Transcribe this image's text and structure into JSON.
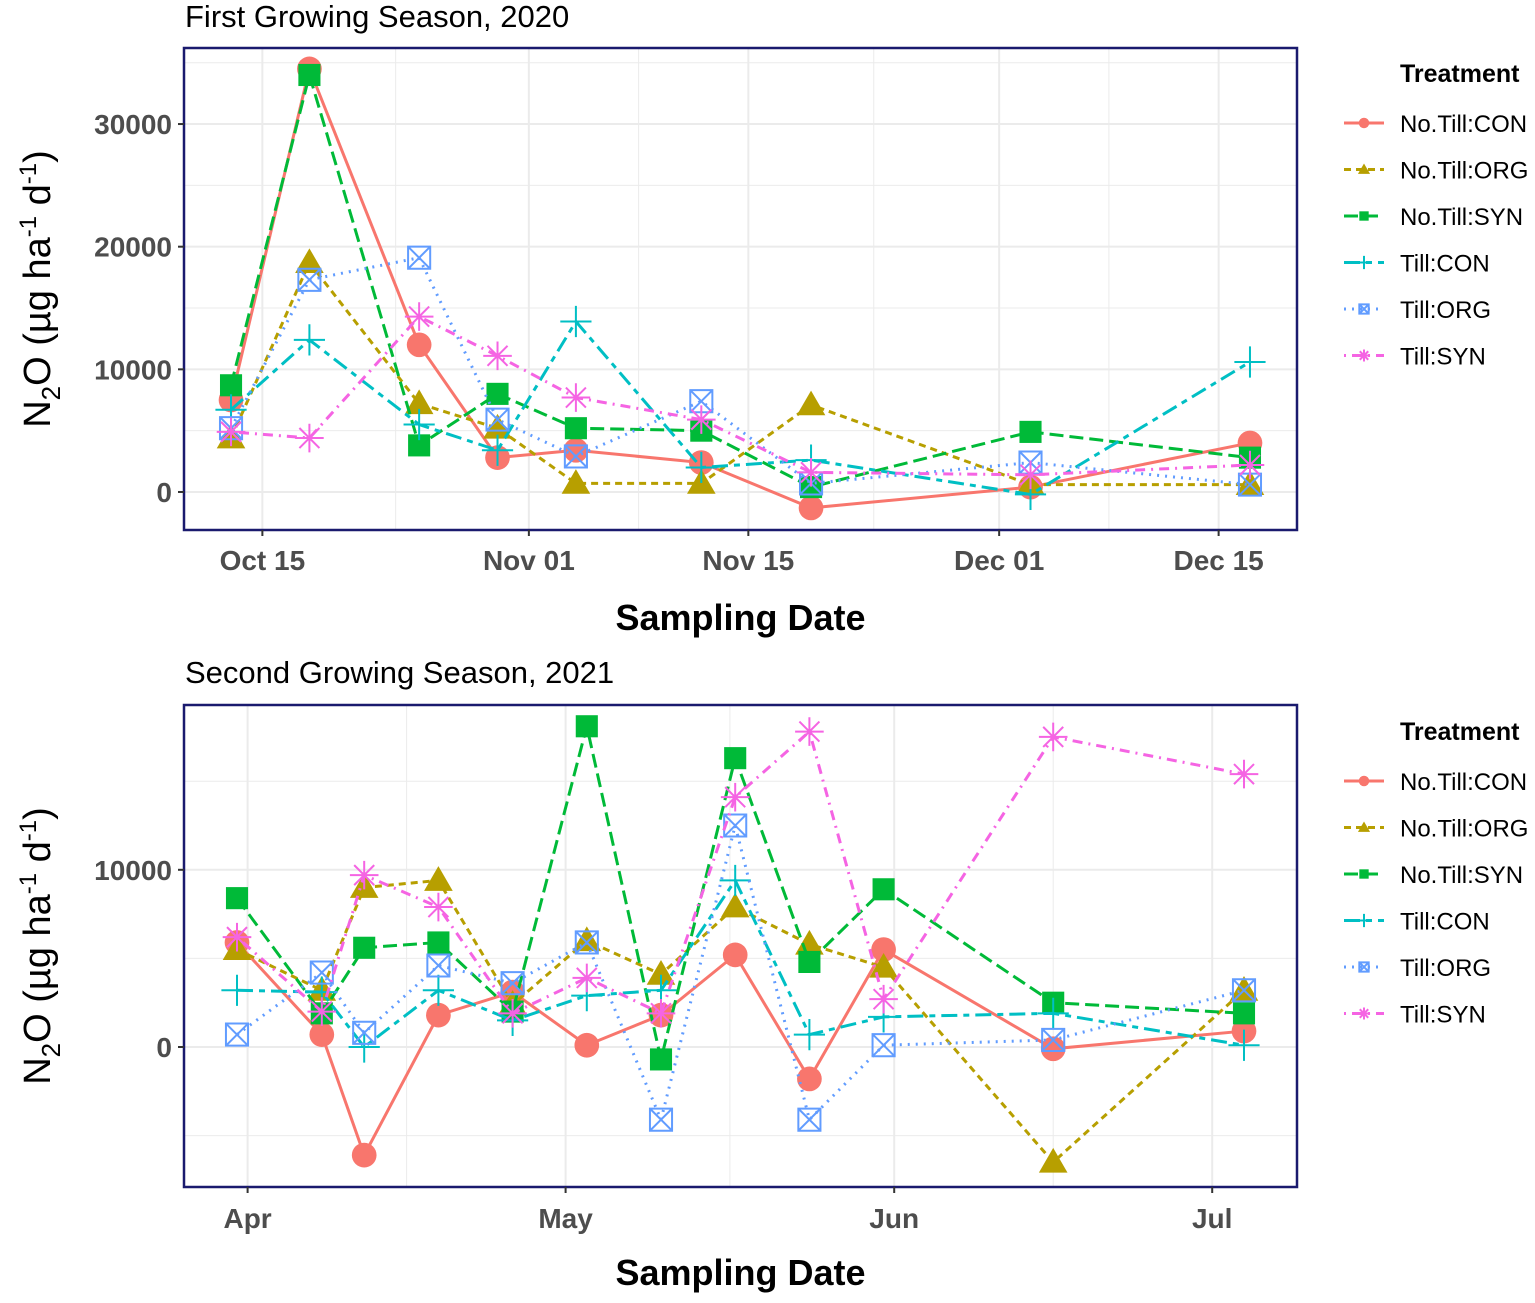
{
  "chart_data": [
    {
      "type": "line",
      "title": "First Growing Season, 2020",
      "xlabel": "Sampling Date",
      "ylabel": "N2O (µg ha-1 d-1)",
      "ylabel_parts": {
        "main": "N",
        "sub": "2",
        "rest": "O  (µg  ha",
        "sup1": "-1",
        "mid": "d",
        "sup2": "-1",
        "close": ")"
      },
      "xlim": [
        "2020-10-10",
        "2020-12-20"
      ],
      "ylim": [
        -3100,
        36200
      ],
      "x_ticks": [
        {
          "date": "2020-10-15",
          "label": "Oct 15"
        },
        {
          "date": "2020-11-01",
          "label": "Nov 01"
        },
        {
          "date": "2020-11-15",
          "label": "Nov 15"
        },
        {
          "date": "2020-12-01",
          "label": "Dec 01"
        },
        {
          "date": "2020-12-15",
          "label": "Dec 15"
        }
      ],
      "y_ticks": [
        0,
        10000,
        20000,
        30000
      ],
      "grid": true,
      "legend_title": "Treatment",
      "legend_position": "right",
      "x": [
        "2020-10-13",
        "2020-10-18",
        "2020-10-25",
        "2020-10-30",
        "2020-11-04",
        "2020-11-12",
        "2020-11-19",
        "2020-12-03",
        "2020-12-17"
      ],
      "series": [
        {
          "name": "No.Till:CON",
          "color": "#F8766D",
          "shape": "circle",
          "dash": "solid",
          "values": [
            7500,
            34500,
            12000,
            2800,
            3400,
            2400,
            -1300,
            400,
            4000
          ]
        },
        {
          "name": "No.Till:ORG",
          "color": "#B79F00",
          "shape": "triangle",
          "dash": "dashed",
          "values": [
            4400,
            18700,
            7200,
            5200,
            700,
            700,
            7100,
            600,
            600
          ]
        },
        {
          "name": "No.Till:SYN",
          "color": "#00BA38",
          "shape": "square",
          "dash": "longdash",
          "values": [
            8700,
            34000,
            3800,
            8000,
            5200,
            5000,
            400,
            4900,
            2800
          ]
        },
        {
          "name": "Till:CON",
          "color": "#00BFC4",
          "shape": "plus",
          "dash": "twodash",
          "values": [
            6700,
            12400,
            5500,
            3400,
            13900,
            2000,
            2600,
            -200,
            10600
          ]
        },
        {
          "name": "Till:ORG",
          "color": "#619CFF",
          "shape": "boxx",
          "dash": "dotted",
          "values": [
            5200,
            17300,
            19100,
            5900,
            2900,
            7400,
            700,
            2400,
            600
          ]
        },
        {
          "name": "Till:SYN",
          "color": "#F564E3",
          "shape": "asterisk",
          "dash": "dotdash",
          "values": [
            4900,
            4400,
            14300,
            11100,
            7700,
            5900,
            1600,
            1400,
            2200
          ]
        }
      ]
    },
    {
      "type": "line",
      "title": "Second Growing Season, 2021",
      "xlabel": "Sampling Date",
      "ylabel": "N2O (µg ha-1 d-1)",
      "ylabel_parts": {
        "main": "N",
        "sub": "2",
        "rest": "O  (µg  ha",
        "sup1": "-1",
        "mid": "d",
        "sup2": "-1",
        "close": ")"
      },
      "xlim": [
        "2021-03-26",
        "2021-07-09"
      ],
      "ylim": [
        -7900,
        19300
      ],
      "x_ticks": [
        {
          "date": "2021-04-01",
          "label": "Apr"
        },
        {
          "date": "2021-05-01",
          "label": "May"
        },
        {
          "date": "2021-06-01",
          "label": "Jun"
        },
        {
          "date": "2021-07-01",
          "label": "Jul"
        }
      ],
      "y_ticks": [
        0,
        10000
      ],
      "grid": true,
      "legend_title": "Treatment",
      "legend_position": "right",
      "x": [
        "2021-03-31",
        "2021-04-08",
        "2021-04-12",
        "2021-04-19",
        "2021-04-26",
        "2021-05-03",
        "2021-05-10",
        "2021-05-17",
        "2021-05-24",
        "2021-05-31",
        "2021-06-16",
        "2021-07-04"
      ],
      "series": [
        {
          "name": "No.Till:CON",
          "color": "#F8766D",
          "shape": "circle",
          "dash": "solid",
          "values": [
            5900,
            700,
            -6100,
            1800,
            3100,
            100,
            1800,
            5200,
            -1800,
            5500,
            -100,
            900
          ]
        },
        {
          "name": "No.Till:ORG",
          "color": "#B79F00",
          "shape": "triangle",
          "dash": "dashed",
          "values": [
            5500,
            3200,
            9000,
            9400,
            2400,
            6000,
            4100,
            7900,
            5800,
            4500,
            -6500,
            3200
          ]
        },
        {
          "name": "No.Till:SYN",
          "color": "#00BA38",
          "shape": "square",
          "dash": "longdash",
          "values": [
            8400,
            1900,
            5600,
            5900,
            2000,
            18100,
            -700,
            16300,
            4800,
            8900,
            2500,
            1900
          ]
        },
        {
          "name": "Till:CON",
          "color": "#00BFC4",
          "shape": "plus",
          "dash": "twodash",
          "values": [
            3200,
            3100,
            0,
            3200,
            1500,
            2900,
            3200,
            9400,
            700,
            1700,
            1900,
            100
          ]
        },
        {
          "name": "Till:ORG",
          "color": "#619CFF",
          "shape": "boxx",
          "dash": "dotted",
          "values": [
            700,
            4200,
            800,
            4600,
            3600,
            5900,
            -4100,
            12500,
            -4100,
            100,
            400,
            3200
          ]
        },
        {
          "name": "Till:SYN",
          "color": "#F564E3",
          "shape": "asterisk",
          "dash": "dotdash",
          "values": [
            6200,
            2000,
            9700,
            7900,
            1900,
            3900,
            1900,
            14100,
            17800,
            2700,
            17500,
            15400
          ]
        }
      ]
    }
  ]
}
